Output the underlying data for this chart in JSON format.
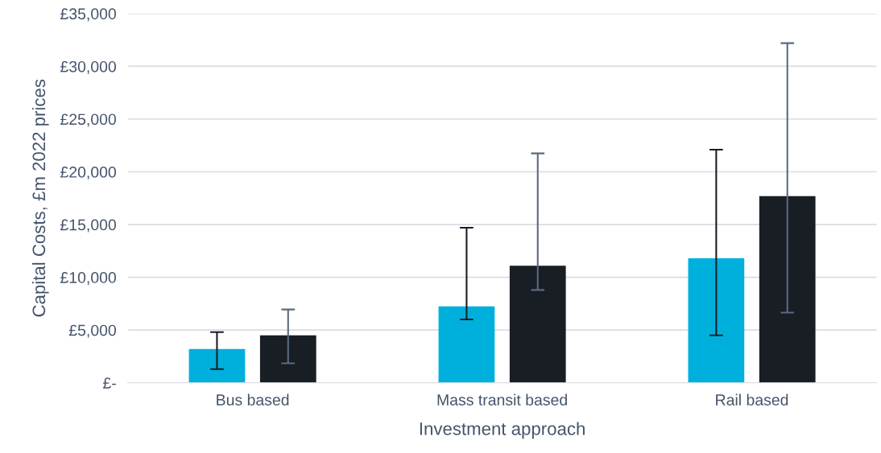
{
  "chart_data": {
    "type": "bar",
    "xlabel": "Investment approach",
    "ylabel": "Capital Costs, £m 2022 prices",
    "categories": [
      "Bus based",
      "Mass transit based",
      "Rail based"
    ],
    "series": [
      {
        "color": "#00b0dc",
        "values": [
          3200,
          7250,
          11800
        ],
        "errors": [
          [
            1300,
            4800
          ],
          [
            6000,
            14700
          ],
          [
            4500,
            22100
          ]
        ]
      },
      {
        "color": "#191d24",
        "values": [
          4500,
          11100,
          17700
        ],
        "errors": [
          [
            1850,
            6950
          ],
          [
            8800,
            21750
          ],
          [
            6650,
            32200
          ]
        ]
      }
    ],
    "ylim": [
      0,
      35000
    ],
    "yticks": [
      {
        "value": 0,
        "label": "£-"
      },
      {
        "value": 5000,
        "label": "£5,000"
      },
      {
        "value": 10000,
        "label": "£10,000"
      },
      {
        "value": 15000,
        "label": "£15,000"
      },
      {
        "value": 20000,
        "label": "£20,000"
      },
      {
        "value": 25000,
        "label": "£25,000"
      },
      {
        "value": 30000,
        "label": "£30,000"
      },
      {
        "value": 35000,
        "label": "£35,000"
      }
    ],
    "grid": "y"
  }
}
